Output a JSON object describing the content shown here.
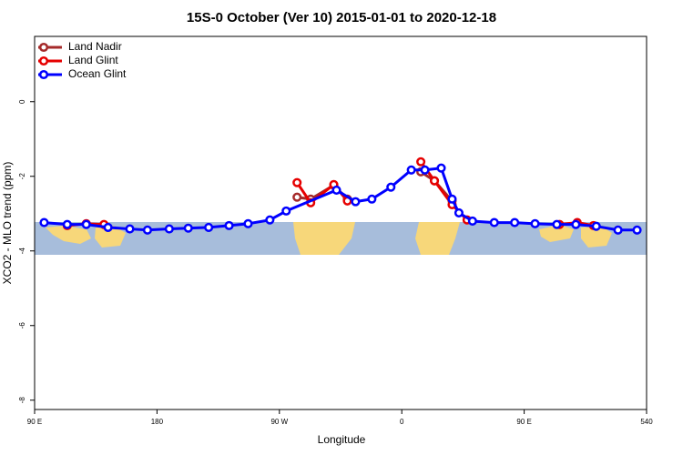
{
  "chart_data": {
    "type": "line",
    "title": "15S-0 October (Ver 10)   2015-01-01 to 2020-12-18",
    "xlabel": "Longitude",
    "ylabel": "XCO2 - MLO trend (ppm)",
    "xlim": [
      90,
      540
    ],
    "xticks": [
      {
        "value": 90,
        "label": "90 E"
      },
      180,
      {
        "value": 270,
        "label": "90 W"
      },
      {
        "value": 360,
        "label": "0"
      },
      {
        "value": 450,
        "label": "90 E"
      },
      540
    ],
    "ylim": [
      -8.25,
      1.75
    ],
    "yticks": [
      0,
      -2,
      -4,
      -6,
      -8
    ],
    "legend": "top-left",
    "series": [
      {
        "name": "Land Nadir",
        "color": "#a52a2a",
        "x": [
          283,
          293,
          310,
          320,
          null,
          374,
          384,
          397
        ],
        "values": [
          -2.56,
          -2.61,
          -2.24,
          -2.61,
          null,
          -1.88,
          -2.12,
          -2.66
        ]
      },
      {
        "name": "Land Glint",
        "color": "#e60000",
        "x": [
          114,
          128,
          141,
          null,
          283,
          293,
          310,
          320,
          null,
          374,
          384,
          397,
          408,
          null,
          476,
          489,
          501
        ],
        "values": [
          -3.32,
          -3.27,
          -3.29,
          null,
          -2.17,
          -2.71,
          -2.22,
          -2.66,
          null,
          -1.61,
          -2.12,
          -2.76,
          -3.17,
          null,
          -3.29,
          -3.24,
          -3.32
        ]
      },
      {
        "name": "Ocean Glint",
        "color": "#0000ff",
        "x": [
          97,
          114,
          128,
          144,
          160,
          173,
          189,
          203,
          218,
          233,
          247,
          263,
          275,
          312,
          326,
          338,
          352,
          367,
          377,
          389,
          397,
          402,
          412,
          428,
          443,
          458,
          474,
          488,
          503,
          519,
          533
        ],
        "values": [
          -3.24,
          -3.29,
          -3.29,
          -3.37,
          -3.41,
          -3.44,
          -3.41,
          -3.39,
          -3.37,
          -3.32,
          -3.27,
          -3.17,
          -2.93,
          -2.37,
          -2.68,
          -2.61,
          -2.29,
          -1.83,
          -1.83,
          -1.78,
          -2.61,
          -2.98,
          -3.2,
          -3.24,
          -3.24,
          -3.27,
          -3.29,
          -3.29,
          -3.34,
          -3.44,
          -3.44
        ]
      }
    ]
  }
}
